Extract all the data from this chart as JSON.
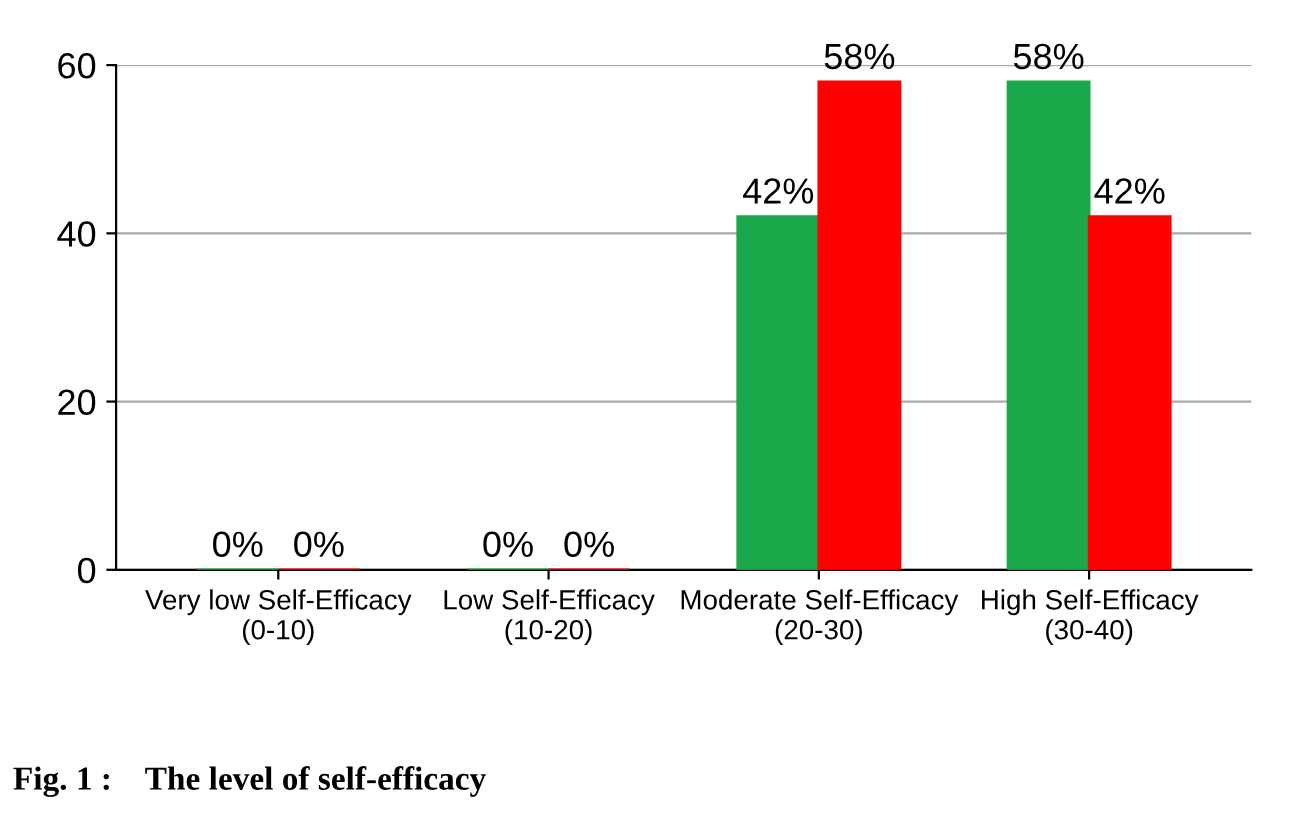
{
  "chart_data": {
    "type": "bar",
    "categories": [
      "Very low Self-Efficacy (0-10)",
      "Low Self-Efficacy (10-20)",
      "Moderate Self-Efficacy (20-30)",
      "High Self-Efficacy (30-40)"
    ],
    "series": [
      {
        "color": "#1aa84a",
        "values": [
          0,
          0,
          42,
          58
        ],
        "value_labels": [
          "0%",
          "0%",
          "42%",
          "58%"
        ]
      },
      {
        "color": "#ff0000",
        "values": [
          0,
          0,
          58,
          42
        ],
        "value_labels": [
          "0%",
          "0%",
          "58%",
          "42%"
        ]
      }
    ],
    "ylim": [
      0,
      60
    ],
    "yticks": [
      0,
      20,
      40,
      60
    ],
    "grid": "y",
    "annotations": [
      "Fig. 1 :    The level of self-efficacy"
    ]
  }
}
